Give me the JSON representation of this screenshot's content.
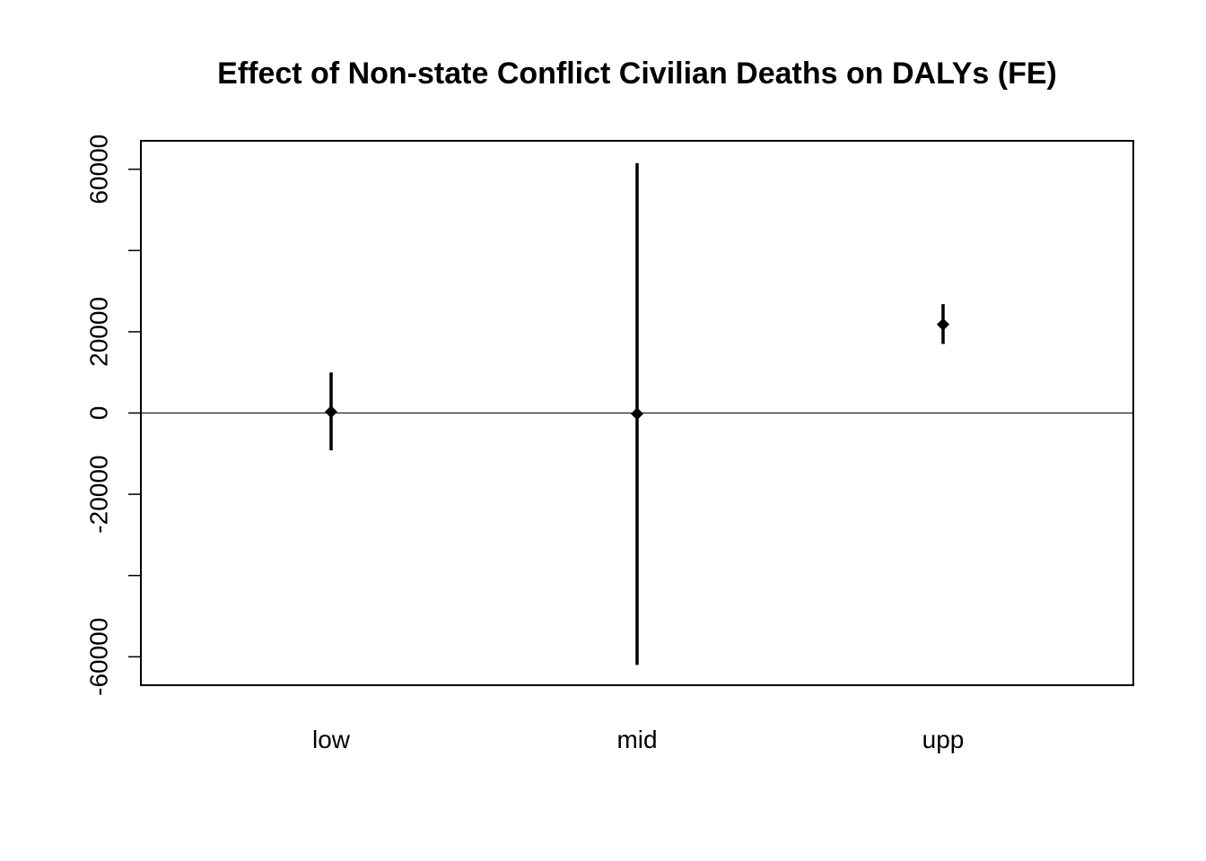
{
  "chart_data": {
    "type": "errorbar",
    "title": "Effect of Non-state Conflict Civilian Deaths on DALYs (FE)",
    "xlabel": "",
    "ylabel": "",
    "categories": [
      "low",
      "mid",
      "upp"
    ],
    "estimates": [
      300,
      -200,
      21800
    ],
    "lower": [
      -9200,
      -62000,
      17000
    ],
    "upper": [
      10000,
      61500,
      26800
    ],
    "ylim": [
      -67000,
      67000
    ],
    "yticks": [
      -60000,
      -40000,
      -20000,
      0,
      20000,
      40000,
      60000
    ],
    "ytick_labels": [
      "-60000",
      "",
      "-20000",
      "0",
      "20000",
      "",
      "60000"
    ],
    "reference_line": 0,
    "grid": false,
    "color": "#000000"
  }
}
